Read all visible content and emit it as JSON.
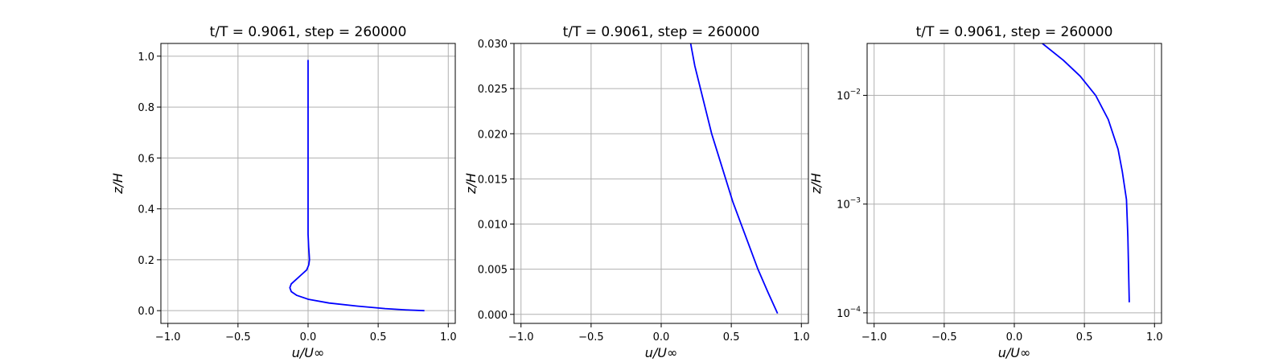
{
  "colors": {
    "series": "#0000ff",
    "grid": "#b0b0b0",
    "axes": "#000000"
  },
  "chart_data": [
    {
      "type": "line",
      "title": "t/T = 0.9061, step = 260000",
      "xlabel": "u/U∞",
      "ylabel": "z/H",
      "xlim": [
        -1.05,
        1.05
      ],
      "ylim": [
        -0.05,
        1.05
      ],
      "yscale": "linear",
      "grid": true,
      "xticks": [
        -1.0,
        -0.5,
        0.0,
        0.5,
        1.0
      ],
      "xtick_labels": [
        "−1.0",
        "−0.5",
        "0.0",
        "0.5",
        "1.0"
      ],
      "yticks": [
        0.0,
        0.2,
        0.4,
        0.6,
        0.8,
        1.0
      ],
      "ytick_labels": [
        "0.0",
        "0.2",
        "0.4",
        "0.6",
        "0.8",
        "1.0"
      ],
      "series": [
        {
          "x": [
            0.83,
            0.7,
            0.55,
            0.35,
            0.15,
            0.0,
            -0.08,
            -0.12,
            -0.13,
            -0.12,
            -0.09,
            -0.05,
            -0.01,
            0.005,
            0.01,
            0.008,
            0.004,
            0.0,
            0.0,
            0.0,
            0.0,
            0.0,
            0.0
          ],
          "y": [
            0.0,
            0.003,
            0.008,
            0.018,
            0.03,
            0.045,
            0.06,
            0.075,
            0.09,
            0.105,
            0.12,
            0.14,
            0.16,
            0.18,
            0.2,
            0.22,
            0.25,
            0.3,
            0.4,
            0.5,
            0.7,
            0.9,
            0.985
          ]
        }
      ]
    },
    {
      "type": "line",
      "title": "t/T = 0.9061, step = 260000",
      "xlabel": "u/U∞",
      "ylabel": "z/H",
      "xlim": [
        -1.05,
        1.05
      ],
      "ylim": [
        -0.001,
        0.03
      ],
      "yscale": "linear",
      "grid": true,
      "xticks": [
        -1.0,
        -0.5,
        0.0,
        0.5,
        1.0
      ],
      "xtick_labels": [
        "−1.0",
        "−0.5",
        "0.0",
        "0.5",
        "1.0"
      ],
      "yticks": [
        0.0,
        0.005,
        0.01,
        0.015,
        0.02,
        0.025,
        0.03
      ],
      "ytick_labels": [
        "0.000",
        "0.005",
        "0.010",
        "0.015",
        "0.020",
        "0.025",
        "0.030"
      ],
      "series": [
        {
          "x": [
            0.83,
            0.76,
            0.69,
            0.63,
            0.57,
            0.51,
            0.46,
            0.41,
            0.36,
            0.32,
            0.28,
            0.24,
            0.21
          ],
          "y": [
            0.0001,
            0.0025,
            0.005,
            0.0075,
            0.01,
            0.0125,
            0.015,
            0.0175,
            0.02,
            0.0225,
            0.025,
            0.0275,
            0.03
          ]
        }
      ]
    },
    {
      "type": "line",
      "title": "t/T = 0.9061, step = 260000",
      "xlabel": "u/U∞",
      "ylabel": "z/H",
      "xlim": [
        -1.05,
        1.05
      ],
      "ylim": [
        8e-05,
        0.03
      ],
      "yscale": "log",
      "grid": true,
      "xticks": [
        -1.0,
        -0.5,
        0.0,
        0.5,
        1.0
      ],
      "xtick_labels": [
        "−1.0",
        "−0.5",
        "0.0",
        "0.5",
        "1.0"
      ],
      "yticks": [
        0.0001,
        0.001,
        0.01
      ],
      "ytick_bases": [
        "10",
        "10",
        "10"
      ],
      "ytick_exps": [
        "−4",
        "−3",
        "−2"
      ],
      "series": [
        {
          "x": [
            0.82,
            0.81,
            0.8,
            0.77,
            0.74,
            0.67,
            0.58,
            0.47,
            0.35,
            0.2
          ],
          "y": [
            0.000125,
            0.0005,
            0.0011,
            0.002,
            0.0032,
            0.006,
            0.01,
            0.015,
            0.021,
            0.03
          ]
        }
      ]
    }
  ]
}
